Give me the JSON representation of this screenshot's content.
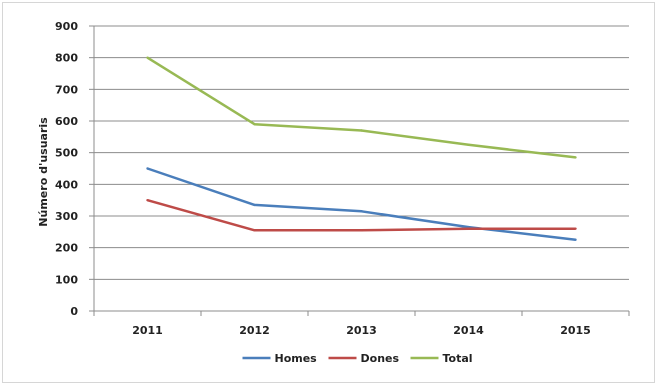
{
  "chart_data": {
    "type": "line",
    "title": "",
    "xlabel": "",
    "ylabel": "Número d'usuaris",
    "categories": [
      "2011",
      "2012",
      "2013",
      "2014",
      "2015"
    ],
    "ylim": [
      0,
      900
    ],
    "yticks": [
      0,
      100,
      200,
      300,
      400,
      500,
      600,
      700,
      800,
      900
    ],
    "grid": true,
    "legend_position": "bottom",
    "series": [
      {
        "name": "Homes",
        "color": "#4a7ebb",
        "values": [
          450,
          335,
          315,
          265,
          225
        ]
      },
      {
        "name": "Dones",
        "color": "#be4b48",
        "values": [
          350,
          255,
          255,
          260,
          260
        ]
      },
      {
        "name": "Total",
        "color": "#98b954",
        "values": [
          800,
          590,
          570,
          525,
          485
        ]
      }
    ]
  }
}
